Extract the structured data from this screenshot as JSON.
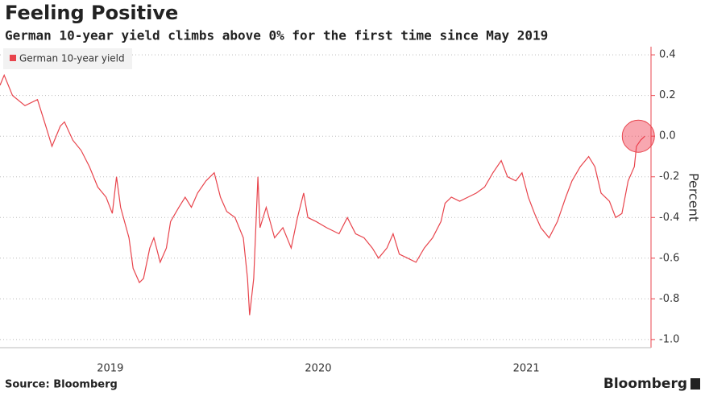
{
  "chart_data": {
    "type": "line",
    "title": "Feeling Positive",
    "subtitle": "German 10-year yield climbs above 0% for the first time since May 2019",
    "y_label": "Percent",
    "source": "Source: Bloomberg",
    "brand": "Bloomberg",
    "legend": "top-left",
    "grid": true,
    "x": [
      2018.97,
      2018.99,
      2019.03,
      2019.09,
      2019.15,
      2019.19,
      2019.22,
      2019.26,
      2019.28,
      2019.32,
      2019.36,
      2019.4,
      2019.44,
      2019.48,
      2019.51,
      2019.53,
      2019.55,
      2019.59,
      2019.61,
      2019.64,
      2019.66,
      2019.69,
      2019.71,
      2019.74,
      2019.77,
      2019.79,
      2019.83,
      2019.86,
      2019.89,
      2019.92,
      2019.96,
      2020.0,
      2020.03,
      2020.06,
      2020.1,
      2020.14,
      2020.16,
      2020.17,
      2020.19,
      2020.21,
      2020.22,
      2020.25,
      2020.29,
      2020.33,
      2020.37,
      2020.4,
      2020.43,
      2020.45,
      2020.49,
      2020.54,
      2020.6,
      2020.64,
      2020.68,
      2020.72,
      2020.76,
      2020.79,
      2020.83,
      2020.86,
      2020.89,
      2020.93,
      2020.97,
      2021.01,
      2021.05,
      2021.09,
      2021.11,
      2021.14,
      2021.18,
      2021.22,
      2021.26,
      2021.3,
      2021.34,
      2021.38,
      2021.41,
      2021.45,
      2021.48,
      2021.51,
      2021.54,
      2021.57,
      2021.61,
      2021.65,
      2021.69,
      2021.72,
      2021.76,
      2021.8,
      2021.83,
      2021.86,
      2021.9,
      2021.93,
      2021.96,
      2021.99,
      2022.02,
      2022.03,
      2022.05,
      2022.07
    ],
    "series": [
      {
        "name": "German 10-year yield",
        "color": "#e8444c",
        "values": [
          0.25,
          0.3,
          0.2,
          0.15,
          0.18,
          0.05,
          -0.05,
          0.05,
          0.07,
          -0.02,
          -0.07,
          -0.15,
          -0.25,
          -0.3,
          -0.38,
          -0.2,
          -0.35,
          -0.5,
          -0.65,
          -0.72,
          -0.7,
          -0.55,
          -0.5,
          -0.62,
          -0.55,
          -0.42,
          -0.35,
          -0.3,
          -0.35,
          -0.28,
          -0.22,
          -0.18,
          -0.3,
          -0.37,
          -0.4,
          -0.5,
          -0.7,
          -0.88,
          -0.7,
          -0.2,
          -0.45,
          -0.35,
          -0.5,
          -0.45,
          -0.55,
          -0.4,
          -0.28,
          -0.4,
          -0.42,
          -0.45,
          -0.48,
          -0.4,
          -0.48,
          -0.5,
          -0.55,
          -0.6,
          -0.55,
          -0.48,
          -0.58,
          -0.6,
          -0.62,
          -0.55,
          -0.5,
          -0.42,
          -0.33,
          -0.3,
          -0.32,
          -0.3,
          -0.28,
          -0.25,
          -0.18,
          -0.12,
          -0.2,
          -0.22,
          -0.18,
          -0.3,
          -0.38,
          -0.45,
          -0.5,
          -0.42,
          -0.3,
          -0.22,
          -0.15,
          -0.1,
          -0.15,
          -0.28,
          -0.32,
          -0.4,
          -0.38,
          -0.22,
          -0.15,
          -0.05,
          -0.02,
          0.0
        ]
      }
    ],
    "xlim": [
      2018.97,
      2022.1
    ],
    "xticks": [
      {
        "value": 2019.5,
        "label": "2019"
      },
      {
        "value": 2020.5,
        "label": "2020"
      },
      {
        "value": 2021.5,
        "label": "2021"
      }
    ],
    "ylim": [
      -1.04,
      0.44
    ],
    "yticks": [
      0.4,
      0.2,
      {
        "value": 0,
        "label": "0.0"
      },
      -0.2,
      -0.4,
      -0.6,
      -0.8,
      {
        "value": -1,
        "label": "-1.0"
      }
    ]
  }
}
